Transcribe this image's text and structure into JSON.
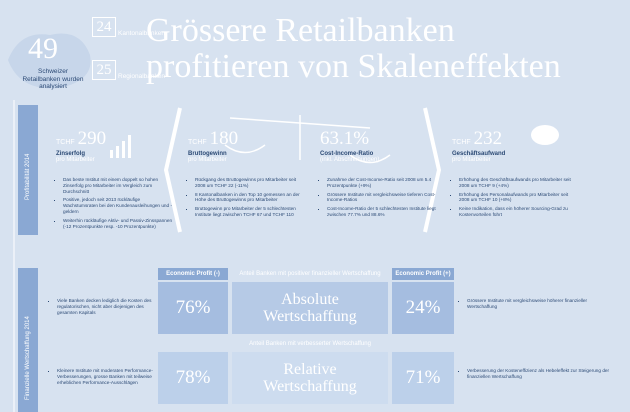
{
  "header": {
    "count": "49",
    "count_label": "Schweizer Retailbanken wurden analysiert",
    "groups": [
      {
        "number": "24",
        "label": "Kantonalbanken"
      },
      {
        "number": "25",
        "label": "Regionalbanken"
      }
    ],
    "title": [
      "Grössere Retailbanken",
      "profitieren von Skaleneffekten"
    ]
  },
  "profitability": {
    "label": "Profitabilität 2014",
    "kpis": [
      {
        "unit": "TCHF",
        "value": "290",
        "caption": "Zinserfolg",
        "sub": "pro Mitarbeiter",
        "bullets": [
          "Das beste Institut mit einem doppelt so hohen Zinserfolg pro Mitarbeiter im Vergleich zum Durchschnitt",
          "Positive, jedoch seit 2013 rückläufige Wachstumsraten bei den Kundenausleihungen und -geldern",
          "Weiterhin rückläufige Aktiv- und Passiv-Zinsspannen (-12 Prozentpunkte resp. -10 Prozentpunkte)"
        ]
      },
      {
        "unit": "TCHF",
        "value": "180",
        "caption": "Bruttogewinn",
        "sub": "pro Mitarbeiter",
        "bullets": [
          "Rückgang des Bruttogewinns pro Mitarbeiter seit 2008 um TCHF 22 (-11%)",
          "8 Kantonalbanken in den Top 10 gemessen an der Höhe des Bruttogewinns pro Mitarbeiter",
          "Bruttogewinn pro Mitarbeiter der 5 schlechtesten Institute liegt zwischen TCHF 67 und TCHF 110"
        ]
      },
      {
        "value": "63.1%",
        "caption": "Cost-Income-Ratio",
        "sub": "(inkl. Abschreibungen)",
        "bullets": [
          "Zunahme der Cost-Income-Ratio seit 2008 um 5.4 Prozentpunkte (+9%)",
          "Grössere Institute mit vergleichsweise tieferen Cost-Income-Ratios",
          "Cost-Income-Ratio der 5 schlechtesten Institute liegt zwischen 77.7% und 88.6%"
        ]
      },
      {
        "unit": "TCHF",
        "value": "232",
        "caption": "Geschäftsaufwand",
        "sub": "pro Mitarbeiter",
        "bullets": [
          "Erhöhung des Geschäftsaufwands pro Mitarbeiter seit 2008 um TCHF 9 (+4%)",
          "Erhöhung des Personalaufwands pro Mitarbeiter seit 2008 um TCHF 10 (+8%)",
          "Keine Indikation, dass ein höherer Sourcing-Grad zu Kostenvorteilen führt"
        ]
      }
    ]
  },
  "value_creation": {
    "label": "Finanzielle Wertschaffung 2014",
    "negative": "Economic Profit (-)",
    "positive": "Economic Profit (+)",
    "rows": [
      {
        "header": "Anteil Banken mit positiver finanzieller Wertschaffung",
        "left": "76%",
        "title": [
          "Absolute",
          "Wertschaffung"
        ],
        "right": "24%",
        "left_note": "Viele Banken decken lediglich die Kosten des regulatorischen, nicht aber diejenigen des gesamten Kapitals",
        "right_note": "Grössere Institute mit vergleichsweise höherer finanzieller Wertschaffung"
      },
      {
        "header": "Anteil Banken mit verbesserter Wertschaffung",
        "left": "78%",
        "title": [
          "Relative",
          "Wertschaffung"
        ],
        "right": "71%",
        "left_note": "Kleinere Institute mit moderaten Performance-Verbesserungen, grosse Banken mit teilweise erheblichen Performance-Ausschlägen",
        "right_note": "Verbesserung der Kosteneffizienz als Hebeleffekt zur Steigerung der finanziellen Wertschaffung"
      }
    ]
  }
}
